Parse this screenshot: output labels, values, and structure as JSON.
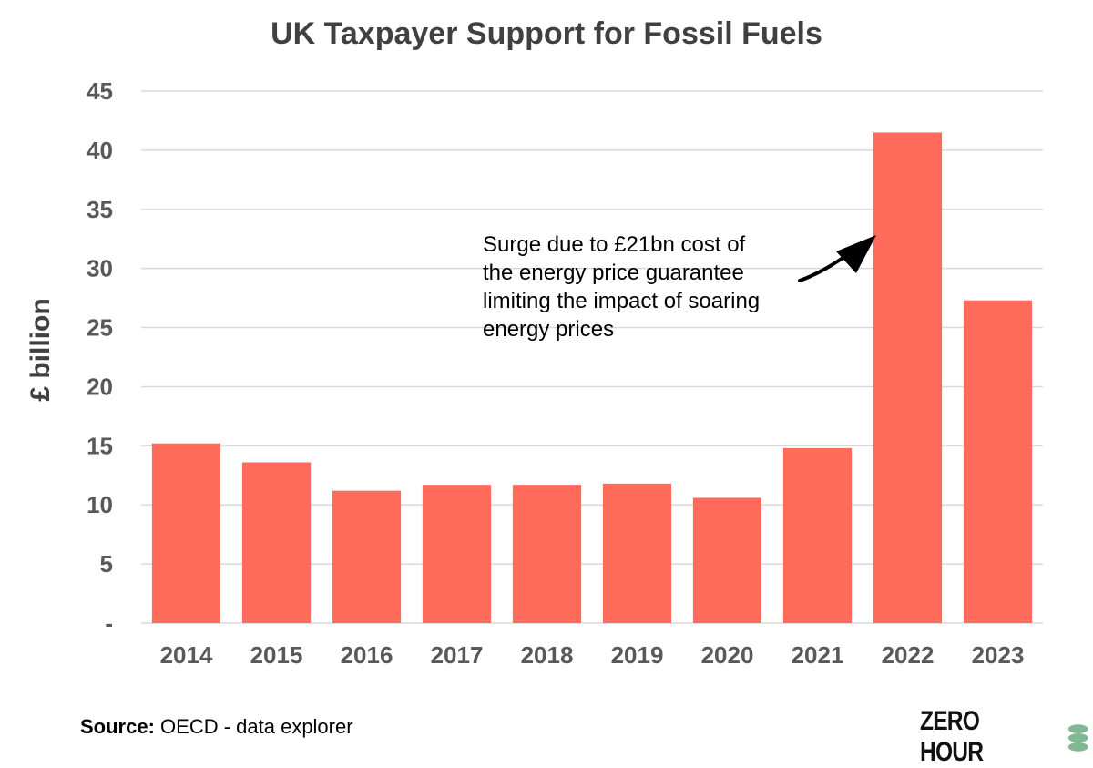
{
  "chart_data": {
    "type": "bar",
    "title": "UK Taxpayer Support for Fossil Fuels",
    "ylabel": "£ billion",
    "xlabel": "",
    "categories": [
      "2014",
      "2015",
      "2016",
      "2017",
      "2018",
      "2019",
      "2020",
      "2021",
      "2022",
      "2023"
    ],
    "values": [
      15.2,
      13.6,
      11.2,
      11.7,
      11.7,
      11.8,
      10.6,
      14.8,
      41.5,
      27.3
    ],
    "ylim": [
      0,
      45
    ],
    "yticks": [
      {
        "value": 0,
        "label": "-"
      },
      {
        "value": 5,
        "label": "5"
      },
      {
        "value": 10,
        "label": "10"
      },
      {
        "value": 15,
        "label": "15"
      },
      {
        "value": 20,
        "label": "20"
      },
      {
        "value": 25,
        "label": "25"
      },
      {
        "value": 30,
        "label": "30"
      },
      {
        "value": 35,
        "label": "35"
      },
      {
        "value": 40,
        "label": "40"
      },
      {
        "value": 45,
        "label": "45"
      }
    ],
    "bar_color": "#ff6b5b",
    "grid": true,
    "legend": "none",
    "annotation": {
      "text": "Surge due to £21bn cost of\nthe energy price guarantee\nlimiting the impact of soaring\nenergy prices",
      "target_category": "2022"
    }
  },
  "source": {
    "label": "Source:",
    "text": " OECD - data explorer"
  },
  "logo": {
    "text": "ZERO HOUR"
  }
}
